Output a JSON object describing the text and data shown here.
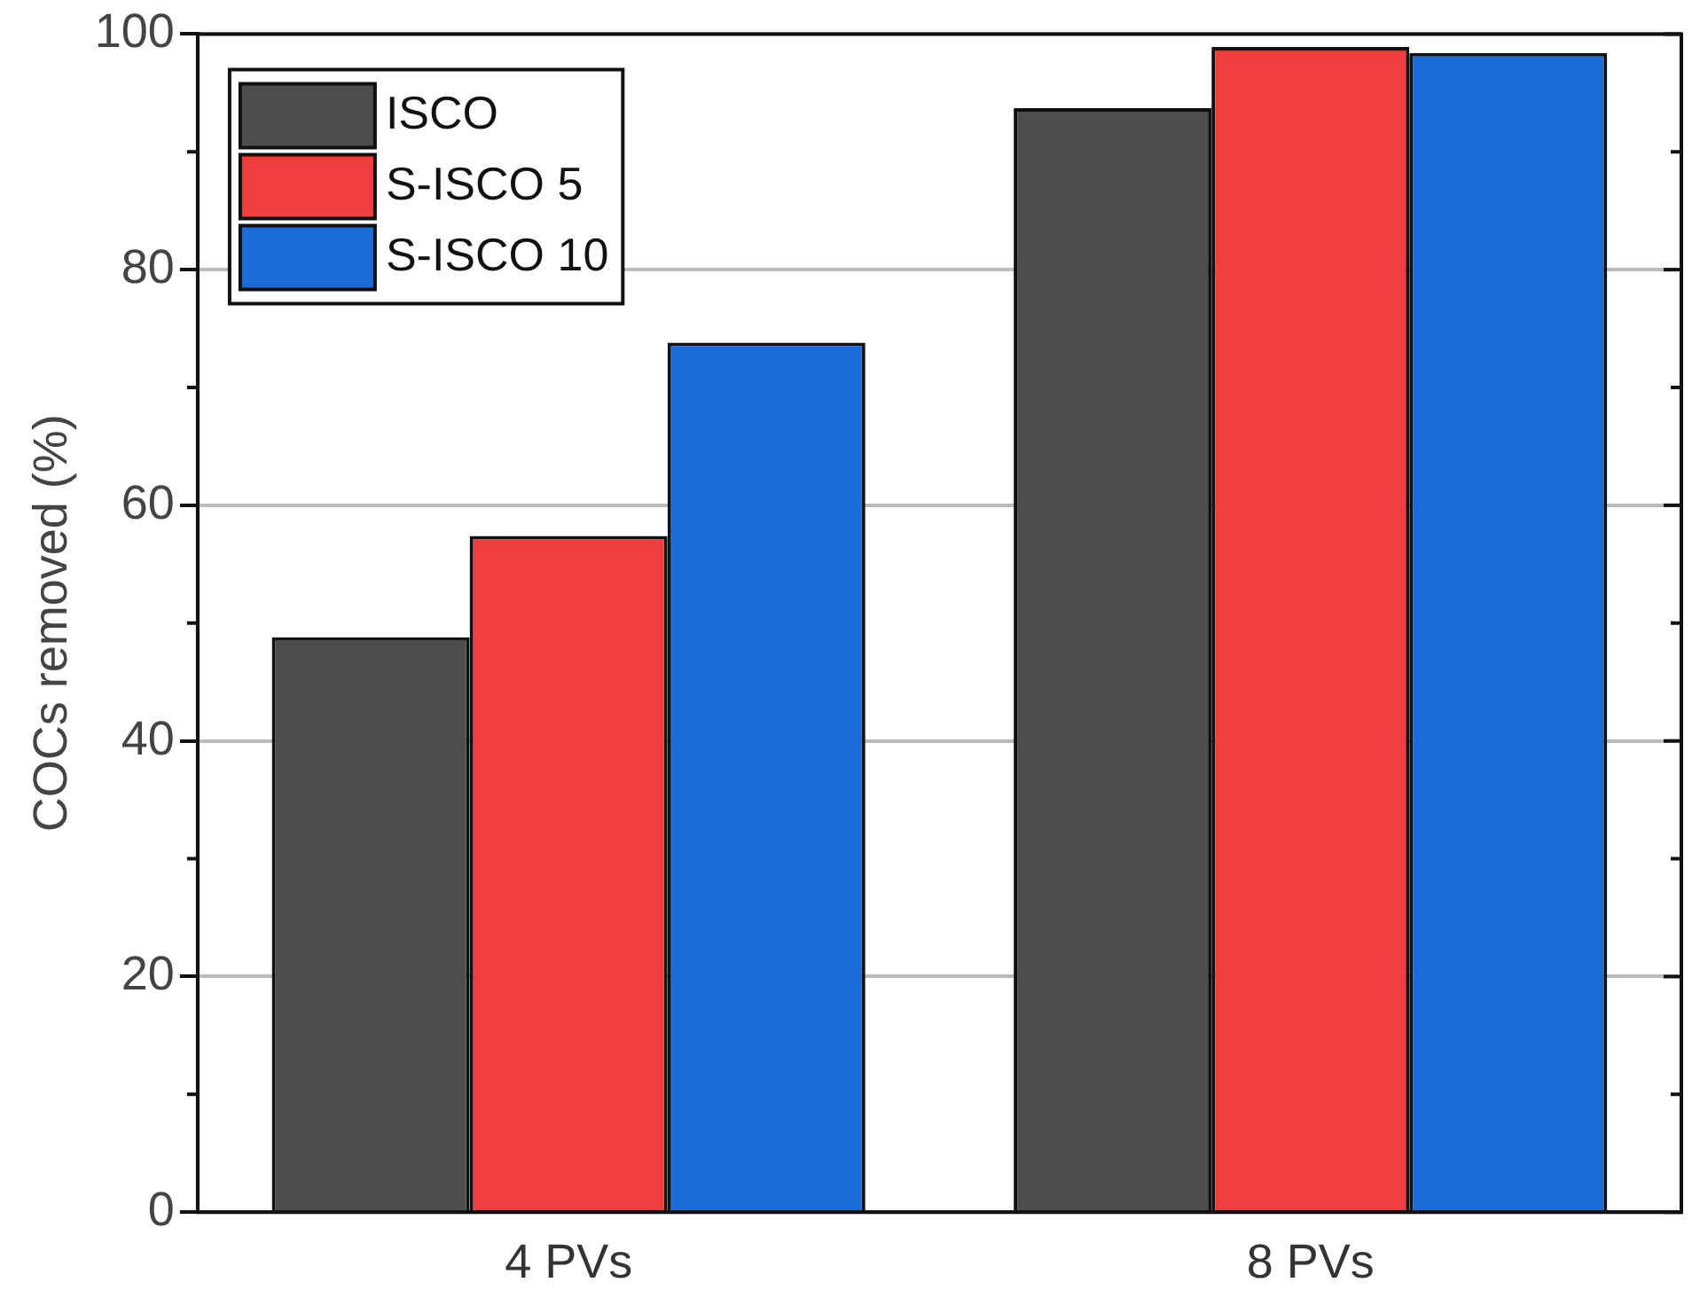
{
  "chart_data": {
    "type": "bar",
    "ylabel": "COCs removed (%)",
    "categories": [
      "4 PVs",
      "8 PVs"
    ],
    "series": [
      {
        "name": "ISCO",
        "color": "#4d4d4d",
        "values": [
          48.8,
          93.7
        ]
      },
      {
        "name": "S-ISCO 5",
        "color": "#ee3e3e",
        "values": [
          57.4,
          98.9
        ]
      },
      {
        "name": "S-ISCO 10",
        "color": "#1b6bd8",
        "values": [
          73.8,
          98.4
        ]
      }
    ],
    "ylim": [
      0,
      100
    ],
    "yticks": [
      0,
      20,
      40,
      60,
      80,
      100
    ],
    "grid": "y",
    "legend": "top left"
  }
}
